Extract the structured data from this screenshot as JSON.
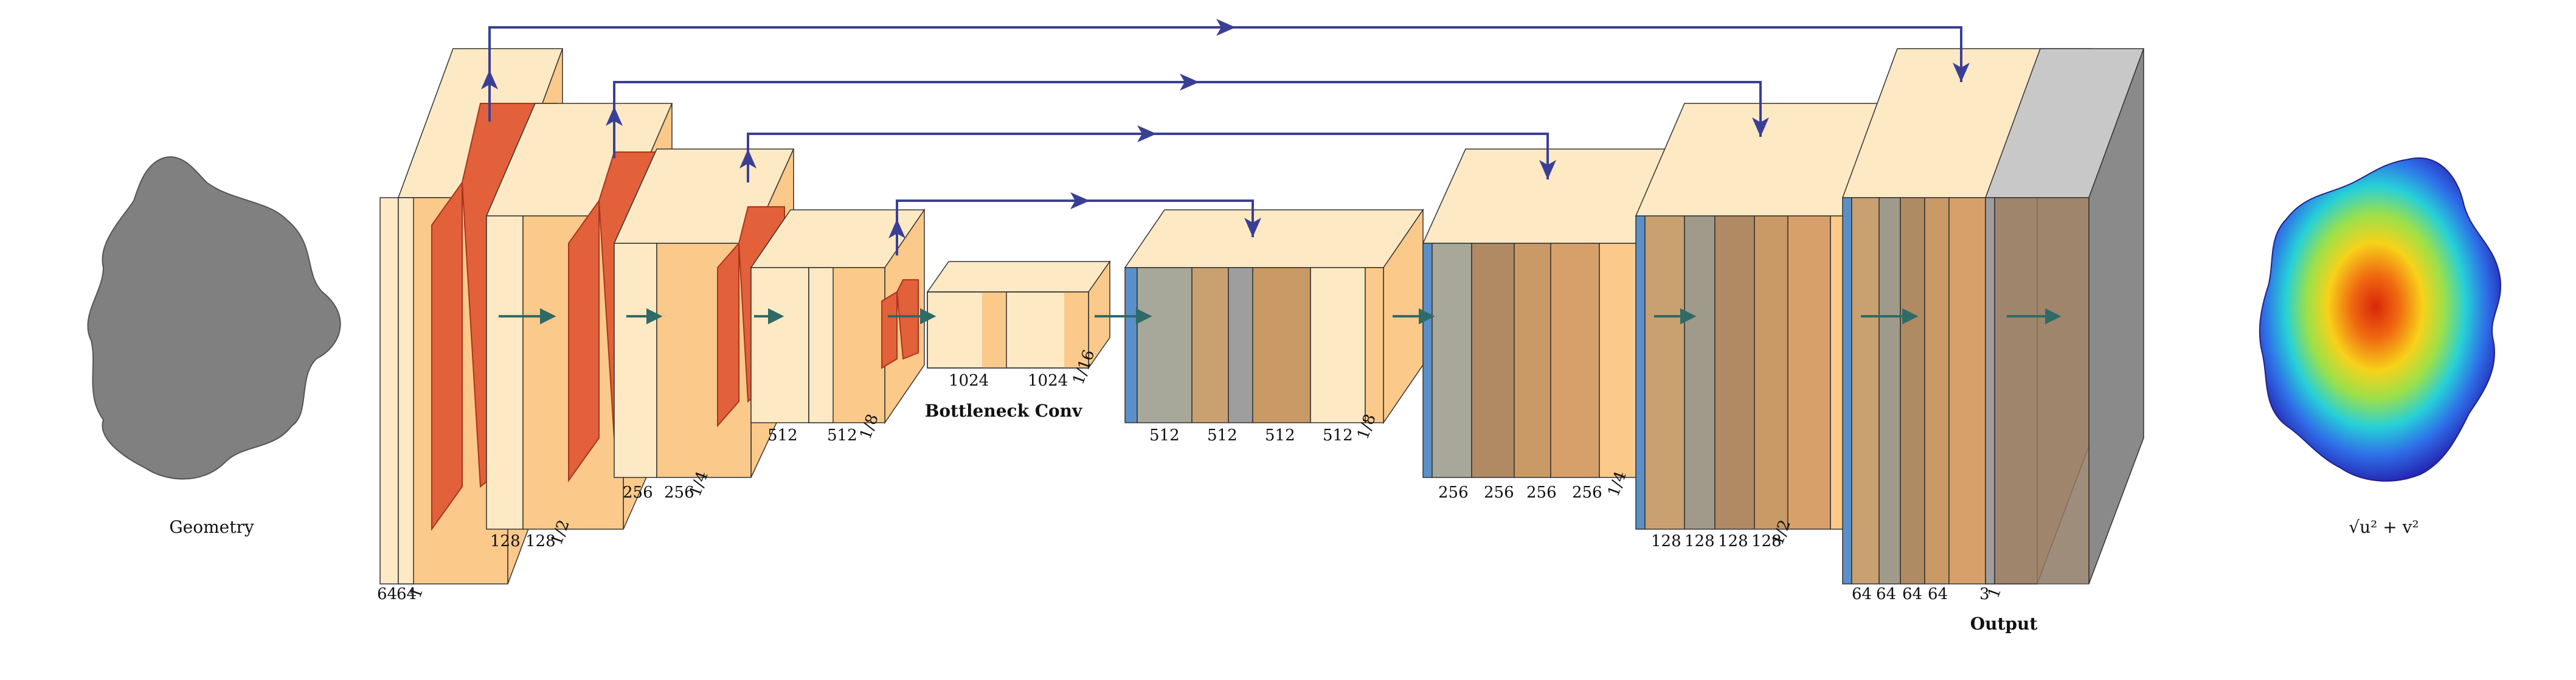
{
  "input": {
    "caption": "Geometry"
  },
  "output_field": {
    "caption": "√u² + v²"
  },
  "encoder": {
    "stage1": {
      "channels": [
        "64",
        "64"
      ],
      "scale": "1"
    },
    "stage2": {
      "channels": [
        "128",
        "128"
      ],
      "scale": "1/2"
    },
    "stage3": {
      "channels": [
        "256",
        "256"
      ],
      "scale": "1/4"
    },
    "stage4": {
      "channels": [
        "512",
        "512"
      ],
      "scale": "1/8"
    }
  },
  "bottleneck": {
    "channels": [
      "1024",
      "1024"
    ],
    "scale": "1/16",
    "label": "Bottleneck Conv"
  },
  "decoder": {
    "stage4": {
      "channels": [
        "512",
        "512",
        "512",
        "512"
      ],
      "scale": "1/8"
    },
    "stage3": {
      "channels": [
        "256",
        "256",
        "256",
        "256"
      ],
      "scale": "1/4"
    },
    "stage2": {
      "channels": [
        "128",
        "128",
        "128",
        "128"
      ],
      "scale": "1/2"
    },
    "stage1": {
      "channels": [
        "64",
        "64",
        "64",
        "64"
      ]
    }
  },
  "output_layer": {
    "channels": [
      "3"
    ],
    "scale": "1",
    "label": "Output"
  },
  "colors": {
    "conv_light": "#fde9c4",
    "conv_mid": "#fbc98a",
    "pool": "#e2603a",
    "pool_edge": "#a8361e",
    "upsample": "#5b8fc8",
    "concat_gray": "#9e9e9e",
    "skip_arrow": "#3a3f96",
    "flow_arrow": "#2f6b66",
    "geometry_fill": "#808080"
  }
}
